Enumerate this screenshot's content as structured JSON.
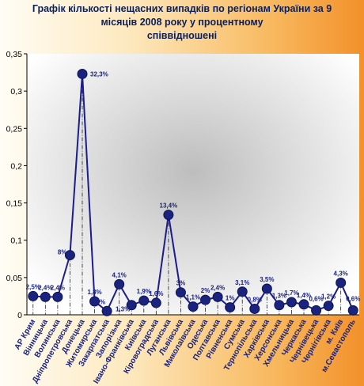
{
  "chart_data": {
    "type": "line",
    "title": "Графік кількості нещасних випадків по регіонам України за 9 місяців 2008 року у процентному співвідношені",
    "title_lines": [
      "Графік кількості нещасних випадків по регіонам України за 9",
      "місяців  2008 року                              у процентному",
      "співвідношені"
    ],
    "xlabel": "",
    "ylabel": "",
    "ylim": [
      0,
      0.35
    ],
    "y_ticks": [
      "0",
      "0,05",
      "0,1",
      "0,15",
      "0,2",
      "0,25",
      "0,3",
      "0,35"
    ],
    "grid": false,
    "colors": {
      "line": "#1c1c8c",
      "marker": "#1c1c8c",
      "marker_fill": "#1a237e",
      "drop_line": "#222222",
      "plot_center": "#bdbdbd",
      "plot_edge": "#ffffff"
    },
    "categories": [
      "АР Крим",
      "Вінницька",
      "Волинська",
      "Дніпропетровська",
      "Донецька",
      "Житомирська",
      "Закарпатська",
      "Запорізька",
      "Івано-Франківська",
      "Київська",
      "Кіровоградська",
      "Луганська",
      "Львівська",
      "Миколаївська",
      "Одеська",
      "Полтавська",
      "Рівненська",
      "Сумська",
      "Тернопільська",
      "Харківська",
      "Херсонська",
      "Хмельницька",
      "Черкаська",
      "Чернівецька",
      "Чернігівська",
      "м. Київ",
      "м.Севастополь"
    ],
    "values": [
      0.025,
      0.024,
      0.024,
      0.08,
      0.323,
      0.018,
      0.005,
      0.041,
      0.013,
      0.019,
      0.016,
      0.134,
      0.03,
      0.011,
      0.02,
      0.024,
      0.01,
      0.031,
      0.008,
      0.035,
      0.013,
      0.017,
      0.014,
      0.006,
      0.012,
      0.043,
      0.006
    ],
    "data_labels": [
      "2,5%",
      "2,4%",
      "2,4%",
      "8%",
      "32,3%",
      "1,8%",
      "0,5%",
      "4,1%",
      "1,3%",
      "1,9%",
      "1,6%",
      "13,4%",
      "3%",
      "1,1%",
      "2%",
      "2,4%",
      "1%",
      "3,1%",
      "0,8%",
      "3,5%",
      "1,3%",
      "1,7%",
      "1,4%",
      "0,6%",
      "1,2%",
      "4,3%",
      "0,6%"
    ]
  }
}
